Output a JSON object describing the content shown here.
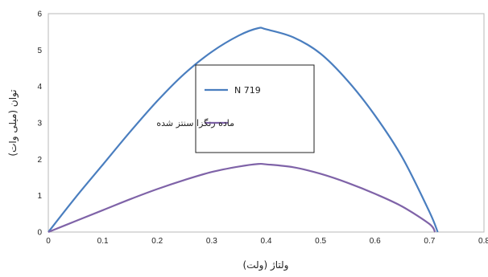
{
  "chart_data": {
    "type": "line",
    "title": "",
    "xlabel": "ولتاژ (ولت)",
    "ylabel": "توان (میلی وات)",
    "xlim": [
      0,
      0.8
    ],
    "ylim": [
      0,
      6
    ],
    "x_ticks": [
      "0",
      "0.1",
      "0.2",
      "0.3",
      "0.4",
      "0.5",
      "0.6",
      "0.7",
      "0.8"
    ],
    "y_ticks": [
      "0",
      "1",
      "2",
      "3",
      "4",
      "5",
      "6"
    ],
    "grid": false,
    "legend_position": "center-left",
    "series": [
      {
        "name": "N 719",
        "color": "#4a7ebf",
        "x": [
          0,
          0.05,
          0.1,
          0.15,
          0.2,
          0.25,
          0.3,
          0.35,
          0.385,
          0.4,
          0.45,
          0.5,
          0.55,
          0.6,
          0.65,
          0.7,
          0.715
        ],
        "y": [
          0,
          0.95,
          1.85,
          2.75,
          3.6,
          4.35,
          4.95,
          5.4,
          5.6,
          5.57,
          5.35,
          4.9,
          4.15,
          3.2,
          2.05,
          0.55,
          0
        ]
      },
      {
        "name": "ماده رنگزا سنتز شده",
        "color": "#7f63a8",
        "x": [
          0,
          0.05,
          0.1,
          0.15,
          0.2,
          0.25,
          0.3,
          0.35,
          0.385,
          0.4,
          0.45,
          0.5,
          0.55,
          0.6,
          0.65,
          0.7,
          0.71
        ],
        "y": [
          0,
          0.3,
          0.6,
          0.9,
          1.18,
          1.43,
          1.65,
          1.8,
          1.87,
          1.86,
          1.78,
          1.6,
          1.35,
          1.05,
          0.7,
          0.22,
          0
        ]
      }
    ]
  }
}
